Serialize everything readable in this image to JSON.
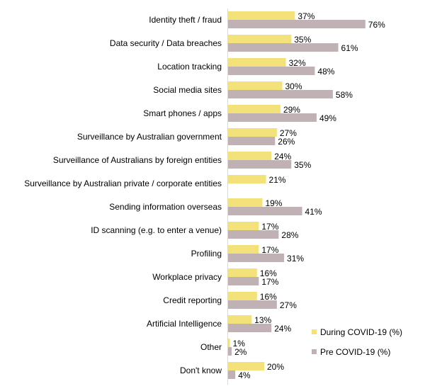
{
  "chart_data": {
    "type": "bar",
    "orientation": "horizontal",
    "categories": [
      "Identity theft / fraud",
      "Data security / Data breaches",
      "Location tracking",
      "Social media sites",
      "Smart phones / apps",
      "Surveillance by Australian government",
      "Surveillance of Australians by foreign entities",
      "Surveillance by Australian private / corporate entities",
      "Sending information overseas",
      "ID scanning (e.g. to enter a venue)",
      "Profiling",
      "Workplace privacy",
      "Credit reporting",
      "Artificial Intelligence",
      "Other",
      "Don't know"
    ],
    "series": [
      {
        "name": "During COVID-19 (%)",
        "color": "#F3E17A",
        "values": [
          37,
          35,
          32,
          30,
          29,
          27,
          24,
          21,
          19,
          17,
          17,
          16,
          16,
          13,
          1,
          20
        ]
      },
      {
        "name": "Pre COVID-19 (%)",
        "color": "#BFB1B4",
        "values": [
          76,
          61,
          48,
          58,
          49,
          26,
          35,
          null,
          41,
          28,
          31,
          17,
          27,
          24,
          2,
          4
        ]
      }
    ],
    "value_suffix": "%",
    "legend_position": "bottom-right",
    "grid": false,
    "title": "",
    "xlabel": "",
    "ylabel": ""
  }
}
